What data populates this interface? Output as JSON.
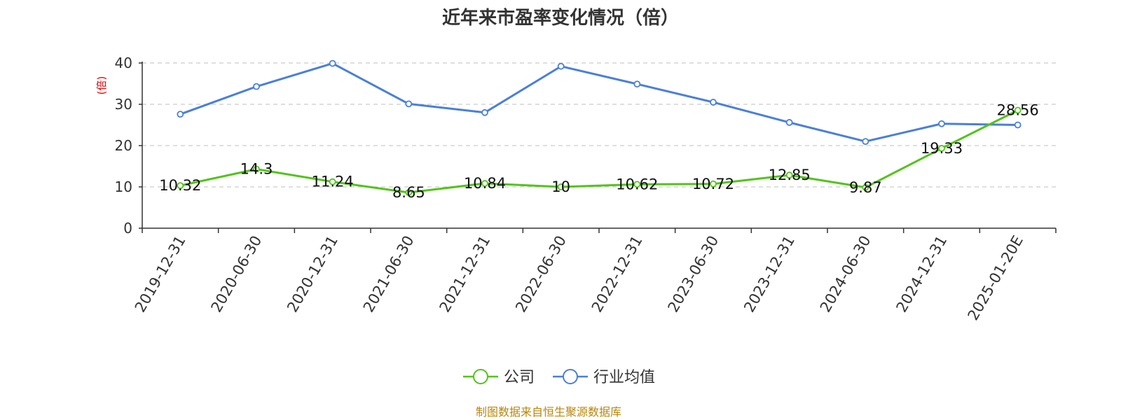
{
  "chart_data": {
    "type": "line",
    "title": "近年来市盈率变化情况（倍）",
    "ylabel": "(倍)",
    "xlabel": "",
    "ylim": [
      0,
      40
    ],
    "yticks": [
      0,
      10,
      20,
      30,
      40
    ],
    "grid": true,
    "legend_position": "bottom",
    "categories": [
      "2019-12-31",
      "2020-06-30",
      "2020-12-31",
      "2021-06-30",
      "2021-12-31",
      "2022-06-30",
      "2022-12-31",
      "2023-06-30",
      "2023-12-31",
      "2024-06-30",
      "2024-12-31",
      "2025-01-20E"
    ],
    "series": [
      {
        "name": "公司",
        "color": "#52c41a",
        "values": [
          10.32,
          14.3,
          11.24,
          8.65,
          10.84,
          10,
          10.62,
          10.72,
          12.85,
          9.87,
          19.33,
          28.56
        ],
        "labels": [
          "10.32",
          "14.3",
          "11.24",
          "8.65",
          "10.84",
          "10",
          "10.62",
          "10.72",
          "12.85",
          "9.87",
          "19.33",
          "28.56"
        ]
      },
      {
        "name": "行业均值",
        "color": "#4a7fdb",
        "values": [
          27.6,
          34.3,
          39.9,
          30.1,
          28.0,
          39.2,
          34.9,
          30.5,
          25.6,
          21.0,
          25.3,
          25.0
        ]
      }
    ]
  },
  "footer": {
    "source": "制图数据来自恒生聚源数据库"
  }
}
